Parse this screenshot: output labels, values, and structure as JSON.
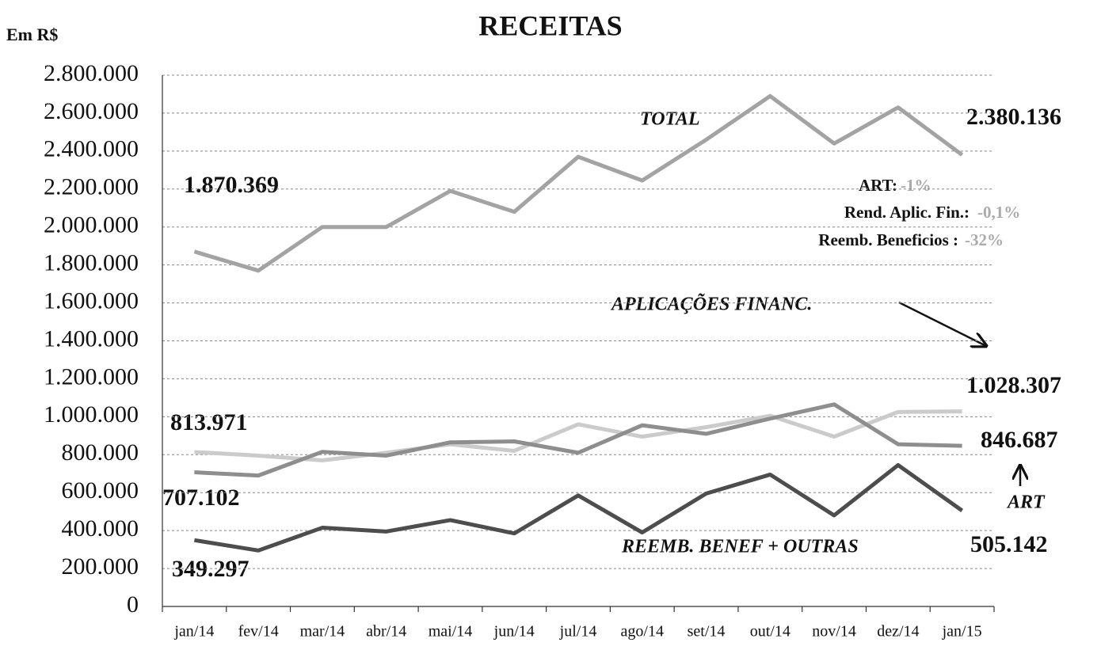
{
  "chart_data": {
    "type": "line",
    "title": "RECEITAS",
    "y_label": "Em R$",
    "categories": [
      "jan/14",
      "fev/14",
      "mar/14",
      "abr/14",
      "mai/14",
      "jun/14",
      "jul/14",
      "ago/14",
      "set/14",
      "out/14",
      "nov/14",
      "dez/14",
      "jan/15"
    ],
    "ylim": [
      0,
      2800000
    ],
    "yticks": [
      0,
      {
        "value": 200000,
        "label": "200.000"
      },
      {
        "value": 400000,
        "label": "400.000"
      },
      {
        "value": 600000,
        "label": "600.000"
      },
      {
        "value": 800000,
        "label": "800.000"
      },
      {
        "value": 1000000,
        "label": "1.000.000"
      },
      {
        "value": 1200000,
        "label": "1.200.000"
      },
      {
        "value": 1400000,
        "label": "1.400.000"
      },
      {
        "value": 1600000,
        "label": "1.600.000"
      },
      {
        "value": 1800000,
        "label": "1.800.000"
      },
      {
        "value": 2000000,
        "label": "2.000.000"
      },
      {
        "value": 2200000,
        "label": "2.200.000"
      },
      {
        "value": 2400000,
        "label": "2.400.000"
      },
      {
        "value": 2600000,
        "label": "2.600.000"
      },
      {
        "value": 2800000,
        "label": "2.800.000"
      }
    ],
    "grid": true,
    "series": [
      {
        "name": "TOTAL",
        "color": "#a3a3a3",
        "values": [
          1870369,
          1770000,
          2000000,
          2000000,
          2190000,
          2080000,
          2370000,
          2245000,
          2460000,
          2690000,
          2440000,
          2630000,
          2380136
        ],
        "value_labels": [
          "1.870.369",
          null,
          null,
          null,
          null,
          null,
          null,
          null,
          null,
          null,
          null,
          null,
          "2.380.136"
        ]
      },
      {
        "name": "APLICAÇÕES FINANC.",
        "color": "#cbcbcb",
        "values": [
          813971,
          795000,
          770000,
          810000,
          855000,
          820000,
          960000,
          895000,
          945000,
          1005000,
          895000,
          1025000,
          1028307
        ],
        "value_labels": [
          "813.971",
          null,
          null,
          null,
          null,
          null,
          null,
          null,
          null,
          null,
          null,
          null,
          "1.028.307"
        ]
      },
      {
        "name": "ART",
        "color": "#8e8e8e",
        "values": [
          707102,
          690000,
          815000,
          795000,
          865000,
          870000,
          810000,
          955000,
          910000,
          990000,
          1065000,
          855000,
          846687
        ],
        "value_labels": [
          "707.102",
          null,
          null,
          null,
          null,
          null,
          null,
          null,
          null,
          null,
          null,
          null,
          "846.687"
        ]
      },
      {
        "name": "REEMB. BENEF + OUTRAS",
        "color": "#4d4d4d",
        "values": [
          349297,
          295000,
          415000,
          395000,
          455000,
          385000,
          585000,
          390000,
          595000,
          695000,
          480000,
          745000,
          505142
        ],
        "value_labels": [
          "349.297",
          null,
          null,
          null,
          null,
          null,
          null,
          null,
          null,
          null,
          null,
          null,
          "505.142"
        ]
      }
    ],
    "notes": [
      {
        "label": "ART:",
        "value": "-1%"
      },
      {
        "label": "Rend. Aplic. Fin.:",
        "value": "-0,1%"
      },
      {
        "label": "Reemb. Beneficios :",
        "value": "-32%"
      }
    ]
  }
}
